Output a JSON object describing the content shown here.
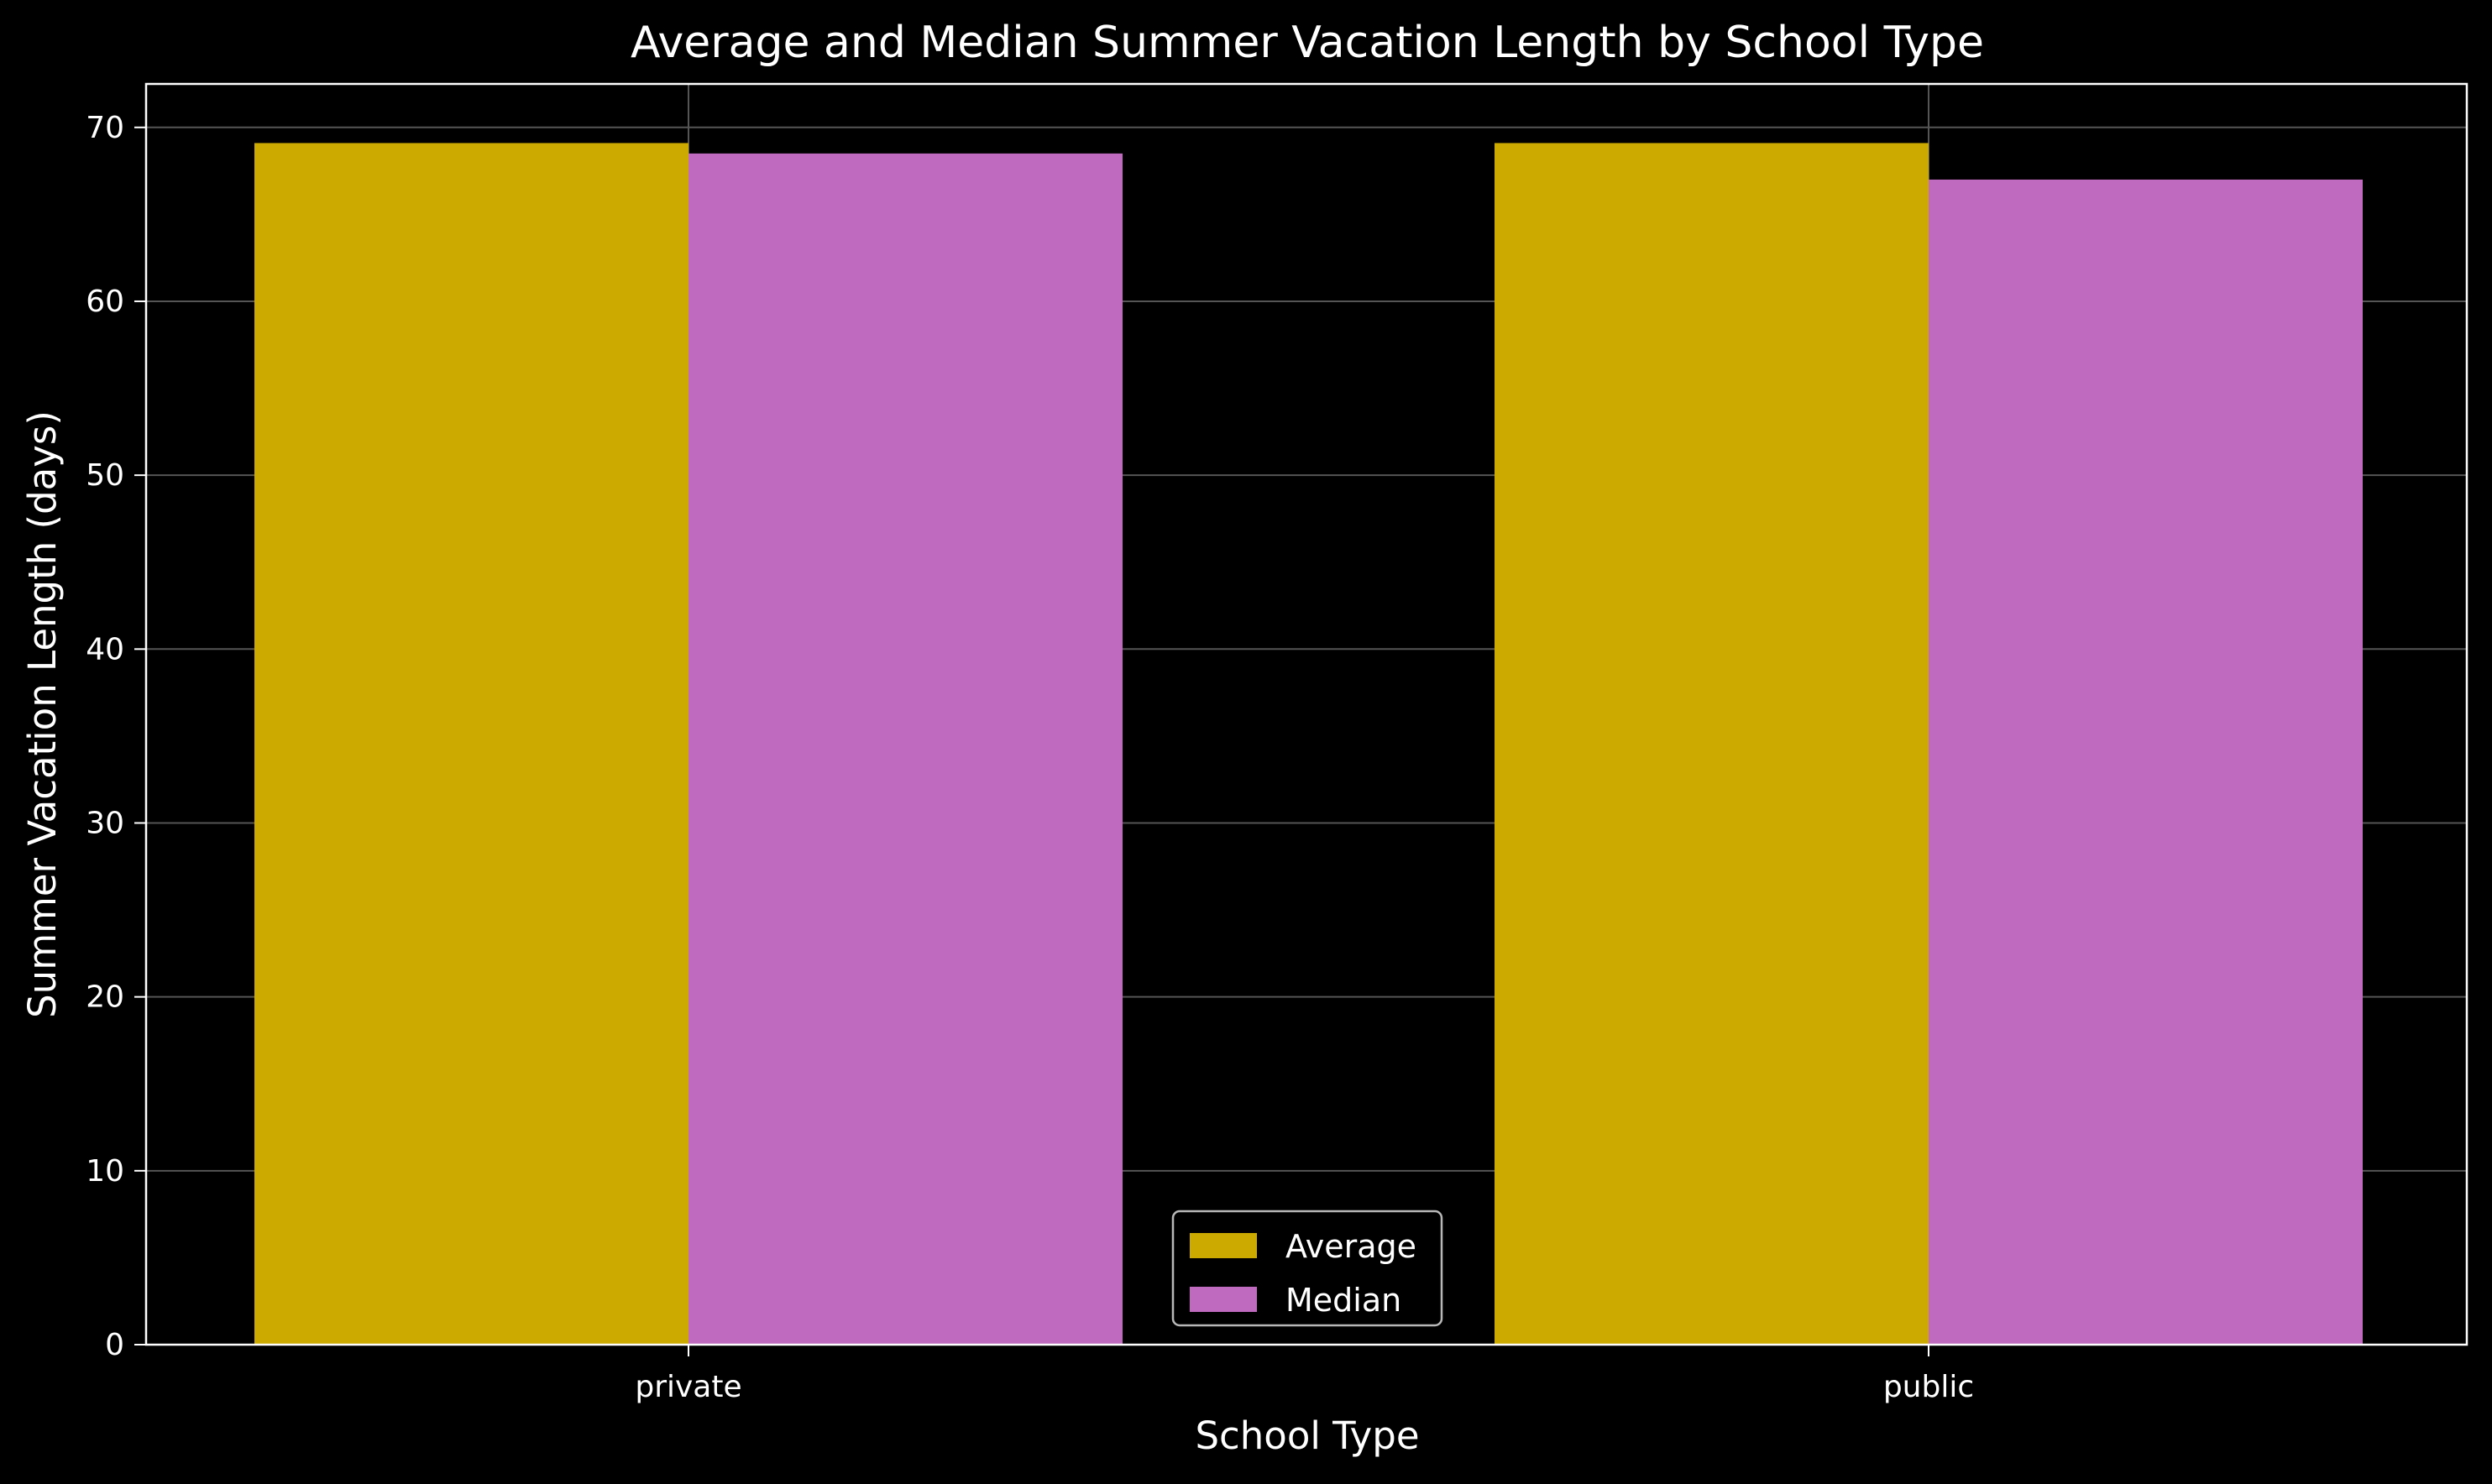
{
  "chart_data": {
    "type": "bar",
    "title": "Average and Median Summer Vacation Length by School Type",
    "xlabel": "School Type",
    "ylabel": "Summer Vacation Length (days)",
    "categories": [
      "private",
      "public"
    ],
    "series": [
      {
        "name": "Average",
        "values": [
          69.1,
          69.1
        ],
        "color": "#ccaa00"
      },
      {
        "name": "Median",
        "values": [
          68.5,
          67.0
        ],
        "color": "#bf6abf"
      }
    ],
    "ylim": [
      0,
      72.5
    ],
    "yticks": [
      0,
      10,
      20,
      30,
      40,
      50,
      60,
      70
    ],
    "grid": true,
    "legend_position": "bottom-center",
    "colors": {
      "background": "#000000",
      "text": "#ffffff",
      "axis": "#ffffff",
      "grid": "#555555"
    }
  }
}
